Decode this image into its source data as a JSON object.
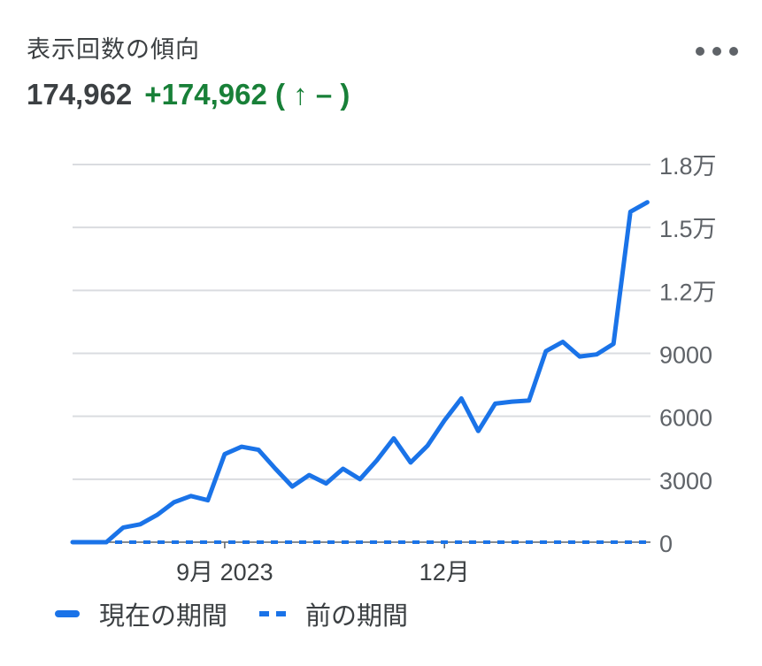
{
  "header": {
    "title": "表示回数の傾向",
    "total": "174,962",
    "change": "+174,962 ( ↑ – )"
  },
  "menu": {
    "icon": "more-horiz-icon"
  },
  "colors": {
    "current": "#1a73e8",
    "previous": "#1a73e8",
    "grid": "#dadce0",
    "change_positive": "#188038"
  },
  "chart_data": {
    "type": "line",
    "x_tick_labels": [
      "9月 2023",
      "12月"
    ],
    "y_tick_labels": [
      "0",
      "3000",
      "6000",
      "9000",
      "1.2万",
      "1.5万",
      "1.8万"
    ],
    "ylim": [
      0,
      18000
    ],
    "grid": true,
    "legend_position": "bottom",
    "series": [
      {
        "name": "現在の期間",
        "style": "solid",
        "values": [
          0,
          0,
          0,
          700,
          850,
          1300,
          1900,
          2200,
          2000,
          4200,
          4550,
          4400,
          3500,
          2650,
          3200,
          2800,
          3500,
          3000,
          3900,
          4950,
          3800,
          4600,
          5800,
          6850,
          5300,
          6600,
          6700,
          6750,
          9100,
          9550,
          8850,
          8950,
          9450,
          15750,
          16200
        ]
      },
      {
        "name": "前の期間",
        "style": "dashed",
        "values": [
          0,
          0,
          0,
          0,
          0,
          0,
          0,
          0,
          0,
          0,
          0,
          0,
          0,
          0,
          0,
          0,
          0,
          0,
          0,
          0,
          0,
          0,
          0,
          0,
          0,
          0,
          0,
          0,
          0,
          0,
          0,
          0,
          0,
          0,
          0
        ]
      }
    ]
  }
}
